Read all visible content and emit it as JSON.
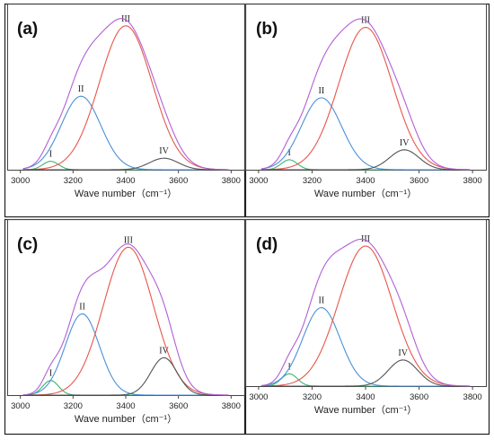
{
  "chart_data": [
    {
      "type": "line",
      "panel_label": "(a)",
      "xlabel": "Wave number（cm⁻¹）",
      "xlim": [
        2950,
        3850
      ],
      "xticks": [
        3000,
        3200,
        3400,
        3600,
        3800
      ],
      "ylim": [
        0,
        1.05
      ],
      "series": [
        {
          "name": "I",
          "color": "#3cb371",
          "center": 3115,
          "height": 0.055,
          "sigma": 30
        },
        {
          "name": "II",
          "color": "#4a90d9",
          "center": 3230,
          "height": 0.48,
          "sigma": 75
        },
        {
          "name": "III",
          "color": "#e8564a",
          "center": 3400,
          "height": 0.94,
          "sigma": 100
        },
        {
          "name": "IV",
          "color": "#555555",
          "center": 3545,
          "height": 0.075,
          "sigma": 55
        },
        {
          "name": "sum",
          "color": "#b25fd6"
        }
      ]
    },
    {
      "type": "line",
      "panel_label": "(b)",
      "xlabel": "Wave number（cm⁻¹）",
      "xlim": [
        2950,
        3850
      ],
      "xticks": [
        3000,
        3200,
        3400,
        3600,
        3800
      ],
      "ylim": [
        0,
        1.05
      ],
      "series": [
        {
          "name": "I",
          "color": "#3cb371",
          "center": 3115,
          "height": 0.065,
          "sigma": 30
        },
        {
          "name": "II",
          "color": "#4a90d9",
          "center": 3235,
          "height": 0.47,
          "sigma": 75
        },
        {
          "name": "III",
          "color": "#e8564a",
          "center": 3400,
          "height": 0.93,
          "sigma": 100
        },
        {
          "name": "IV",
          "color": "#555555",
          "center": 3545,
          "height": 0.13,
          "sigma": 55
        },
        {
          "name": "sum",
          "color": "#b25fd6"
        }
      ]
    },
    {
      "type": "line",
      "panel_label": "(c)",
      "xlabel": "Wave number（cm⁻¹）",
      "xlim": [
        2950,
        3850
      ],
      "xticks": [
        3000,
        3200,
        3400,
        3600,
        3800
      ],
      "ylim": [
        0,
        1.05
      ],
      "series": [
        {
          "name": "I",
          "color": "#3cb371",
          "center": 3115,
          "height": 0.09,
          "sigma": 30
        },
        {
          "name": "II",
          "color": "#4a90d9",
          "center": 3235,
          "height": 0.5,
          "sigma": 65
        },
        {
          "name": "III",
          "color": "#e8564a",
          "center": 3410,
          "height": 0.91,
          "sigma": 95
        },
        {
          "name": "IV",
          "color": "#555555",
          "center": 3545,
          "height": 0.23,
          "sigma": 50
        },
        {
          "name": "sum",
          "color": "#b25fd6"
        }
      ]
    },
    {
      "type": "line",
      "panel_label": "(d)",
      "xlabel": "Wave number（cm⁻¹）",
      "xlim": [
        2950,
        3850
      ],
      "xticks": [
        3000,
        3200,
        3400,
        3600,
        3800
      ],
      "ylim": [
        0,
        1.05
      ],
      "series": [
        {
          "name": "I",
          "color": "#3cb371",
          "center": 3115,
          "height": 0.08,
          "sigma": 30
        },
        {
          "name": "II",
          "color": "#4a90d9",
          "center": 3235,
          "height": 0.51,
          "sigma": 70
        },
        {
          "name": "III",
          "color": "#e8564a",
          "center": 3400,
          "height": 0.91,
          "sigma": 100
        },
        {
          "name": "IV",
          "color": "#555555",
          "center": 3540,
          "height": 0.17,
          "sigma": 55
        },
        {
          "name": "sum",
          "color": "#b25fd6"
        }
      ]
    }
  ]
}
